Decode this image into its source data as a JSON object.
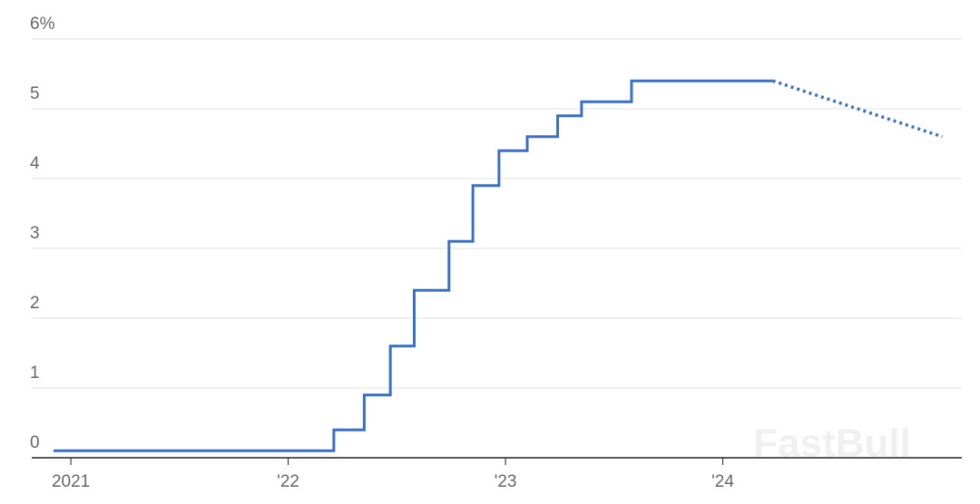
{
  "chart_data": {
    "type": "line",
    "watermark": "FastBull",
    "series": [
      {
        "color": "#3a6fc9",
        "dash": "solid",
        "x": [
          2020.92,
          2022.21,
          2022.21,
          2022.35,
          2022.35,
          2022.47,
          2022.47,
          2022.58,
          2022.58,
          2022.74,
          2022.74,
          2022.85,
          2022.85,
          2022.97,
          2022.97,
          2023.1,
          2023.1,
          2023.24,
          2023.24,
          2023.35,
          2023.35,
          2023.58,
          2023.58,
          2024.23
        ],
        "values": [
          0.1,
          0.1,
          0.4,
          0.4,
          0.9,
          0.9,
          1.6,
          1.6,
          2.4,
          2.4,
          3.1,
          3.1,
          3.9,
          3.9,
          4.4,
          4.4,
          4.6,
          4.6,
          4.9,
          4.9,
          5.1,
          5.1,
          5.4,
          5.4
        ]
      },
      {
        "color": "#3a6fc9",
        "dash": "dotted",
        "x": [
          2024.23,
          2025.01
        ],
        "values": [
          5.4,
          4.6
        ]
      }
    ],
    "xlim": [
      2020.82,
      2025.1
    ],
    "xticks": [
      {
        "value": 2021,
        "label": "2021"
      },
      {
        "value": 2022,
        "label": "'22"
      },
      {
        "value": 2023,
        "label": "'23"
      },
      {
        "value": 2024,
        "label": "'24"
      }
    ],
    "ylim": [
      0,
      6
    ],
    "yticks": [
      0,
      1,
      2,
      3,
      4,
      5,
      {
        "value": 6,
        "label": "6%"
      }
    ],
    "grid": true
  }
}
